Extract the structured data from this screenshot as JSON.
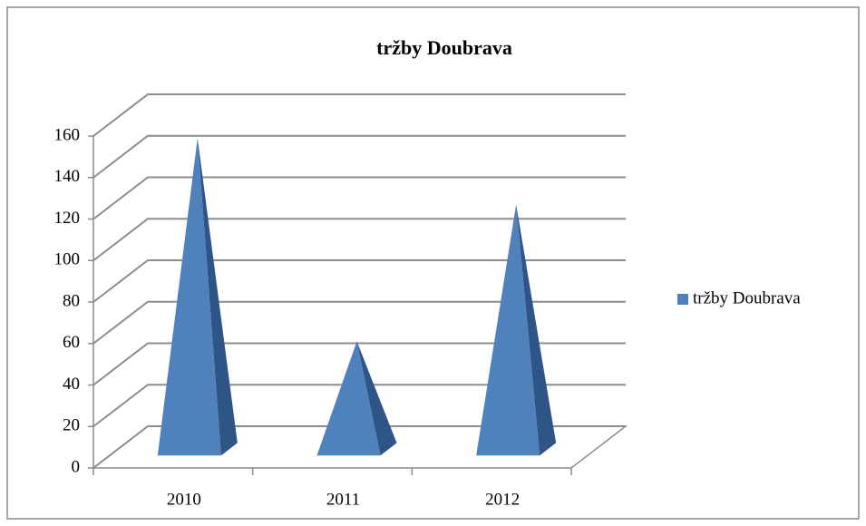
{
  "chart_data": {
    "type": "bar3d-pyramid",
    "title": "tržby Doubrava",
    "categories": [
      "2010",
      "2011",
      "2012"
    ],
    "series": [
      {
        "name": "tržby Doubrava",
        "color": "#4f81bd",
        "values": [
          150,
          52,
          118
        ]
      }
    ],
    "ylim": [
      0,
      160
    ],
    "yticks": [
      0,
      20,
      40,
      60,
      80,
      100,
      120,
      140,
      160
    ],
    "grid": true,
    "legend": "right"
  }
}
